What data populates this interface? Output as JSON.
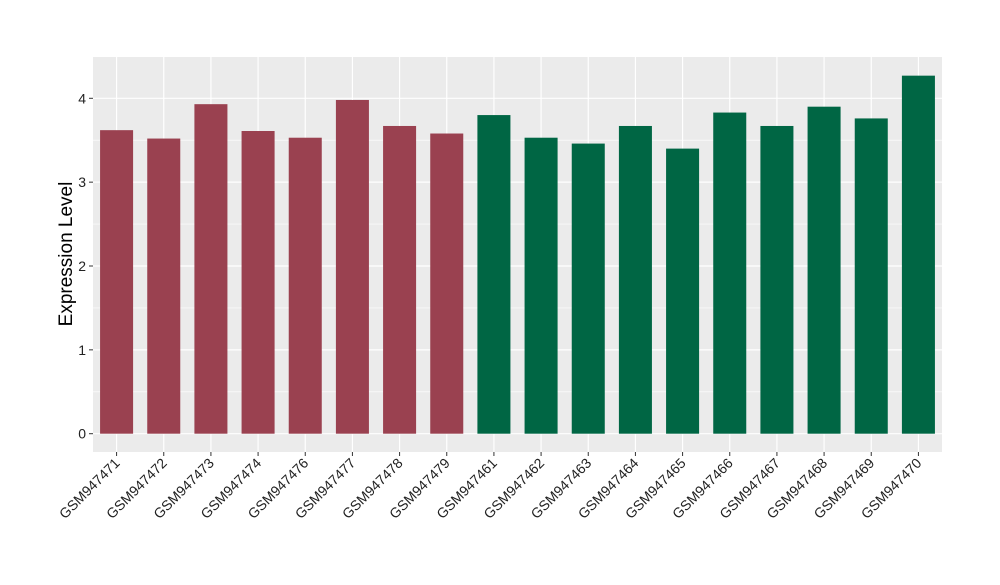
{
  "chart_data": {
    "type": "bar",
    "title": "",
    "xlabel": "",
    "ylabel": "Expression Level",
    "ylim": [
      -0.2,
      4.5
    ],
    "yticks": [
      0,
      1,
      2,
      3,
      4
    ],
    "grid": true,
    "categories": [
      "GSM947471",
      "GSM947472",
      "GSM947473",
      "GSM947474",
      "GSM947476",
      "GSM947477",
      "GSM947478",
      "GSM947479",
      "GSM947461",
      "GSM947462",
      "GSM947463",
      "GSM947464",
      "GSM947465",
      "GSM947466",
      "GSM947467",
      "GSM947468",
      "GSM947469",
      "GSM947470"
    ],
    "values": [
      3.62,
      3.52,
      3.93,
      3.61,
      3.53,
      3.98,
      3.67,
      3.58,
      3.8,
      3.53,
      3.46,
      3.67,
      3.4,
      3.83,
      3.67,
      3.9,
      3.76,
      4.27
    ],
    "groups": [
      "a",
      "a",
      "a",
      "a",
      "a",
      "a",
      "a",
      "a",
      "b",
      "b",
      "b",
      "b",
      "b",
      "b",
      "b",
      "b",
      "b",
      "b"
    ],
    "colors": {
      "a": "#9A4150",
      "b": "#006644"
    },
    "panel_background": "#EBEBEB",
    "legend": "none"
  }
}
